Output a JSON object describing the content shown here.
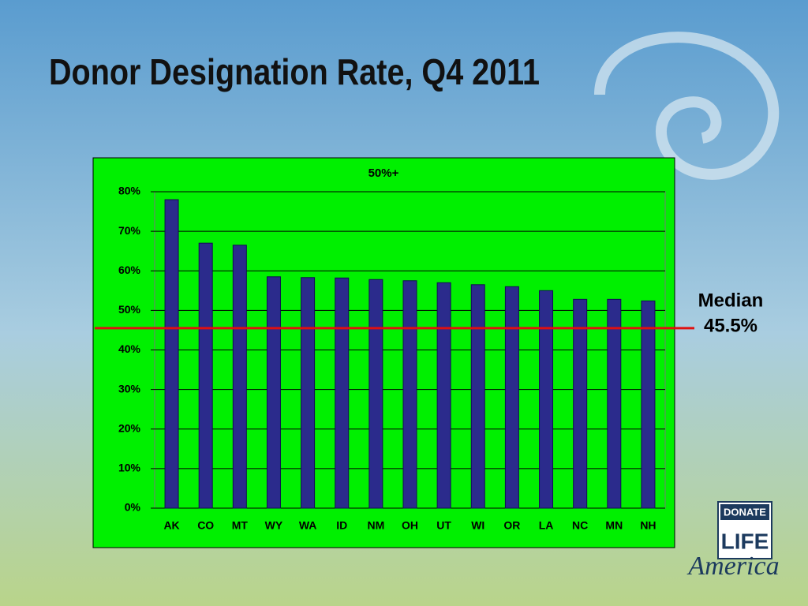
{
  "slide_title": "Donor Designation Rate, Q4 2011",
  "chart_data": {
    "type": "bar",
    "title": "50%+",
    "categories": [
      "AK",
      "CO",
      "MT",
      "WY",
      "WA",
      "ID",
      "NM",
      "OH",
      "UT",
      "WI",
      "OR",
      "LA",
      "NC",
      "MN",
      "NH"
    ],
    "values": [
      78,
      67,
      66.5,
      58.5,
      58.3,
      58.2,
      57.8,
      57.5,
      57,
      56.5,
      56,
      55,
      52.8,
      52.8,
      52.4
    ],
    "color": "#2b2b8c",
    "ylim": [
      0,
      80
    ],
    "yticks": [
      {
        "value": 0,
        "label": "0%"
      },
      {
        "value": 10,
        "label": "10%"
      },
      {
        "value": 20,
        "label": "20%"
      },
      {
        "value": 30,
        "label": "30%"
      },
      {
        "value": 40,
        "label": "40%"
      },
      {
        "value": 50,
        "label": "50%"
      },
      {
        "value": 60,
        "label": "60%"
      },
      {
        "value": 70,
        "label": "70%"
      },
      {
        "value": 80,
        "label": "80%"
      }
    ],
    "grid": true,
    "median": {
      "label": "Median",
      "value": 45.5,
      "value_label": "45.5%",
      "color": "#e01010"
    }
  },
  "logo": {
    "top": "DONATE",
    "middle": "LIFE",
    "bottom": "America"
  }
}
